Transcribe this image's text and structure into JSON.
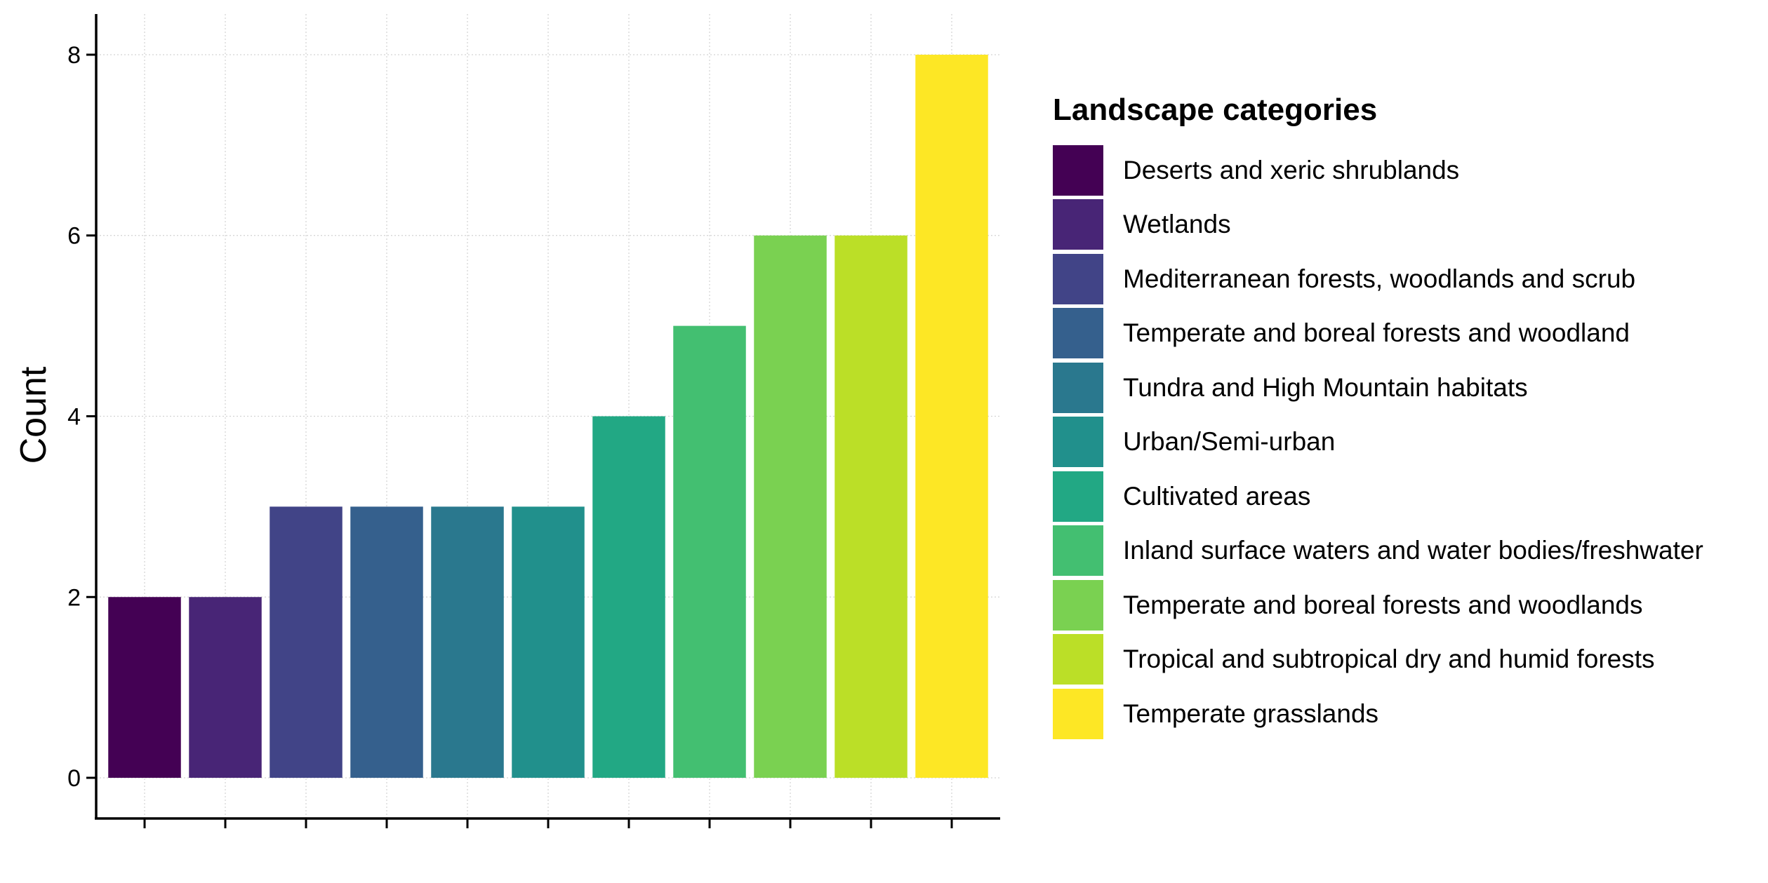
{
  "chart_data": {
    "type": "bar",
    "title": "",
    "xlabel": "",
    "ylabel": "Count",
    "ylim": [
      -0.45,
      8.45
    ],
    "yticks": [
      0,
      2,
      4,
      6,
      8
    ],
    "ytick_labels": [
      "0",
      "2",
      "4",
      "6",
      "8"
    ],
    "grid": true,
    "legend_title": "Landscape categories",
    "legend_position": "right",
    "categories": [
      "Deserts and xeric shrublands",
      "Wetlands",
      "Mediterranean forests, woodlands and scrub",
      "Temperate and boreal forests and woodland",
      "Tundra and High Mountain habitats",
      "Urban/Semi-urban",
      "Cultivated areas",
      "Inland surface waters and water bodies/freshwater",
      "Temperate and boreal forests and woodlands",
      "Tropical and subtropical dry and humid forests",
      "Temperate grasslands"
    ],
    "values": [
      2,
      2,
      3,
      3,
      3,
      3,
      4,
      5,
      6,
      6,
      8
    ],
    "colors": [
      "#440154",
      "#482576",
      "#414487",
      "#35608D",
      "#2A788E",
      "#21908C",
      "#22A884",
      "#43BF71",
      "#7AD151",
      "#BBDF27",
      "#FDE725"
    ]
  }
}
